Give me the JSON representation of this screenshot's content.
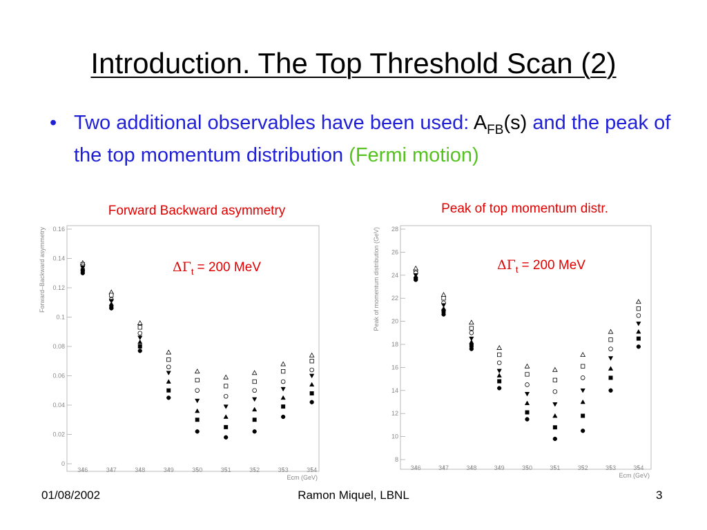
{
  "title": "Introduction. The Top Threshold Scan (2)",
  "bullet": {
    "part1": "Two additional observables have been used:",
    "part2": "A",
    "part2_sub": "FB",
    "part3": "(s)",
    "part4": "and the peak of the top momentum distribution",
    "part5": "(Fermi motion)"
  },
  "footer": {
    "date": "01/08/2002",
    "author": "Ramon Miquel, LBNL",
    "page": "3"
  },
  "chart_data": [
    {
      "type": "scatter",
      "title": "Forward Backward asymmetry",
      "xlabel": "Ecm (GeV)",
      "ylabel": "Forward–Backward asymmetry",
      "annotation": {
        "symbol": "ΔΓ",
        "subscript": "t",
        "text": "= 200 MeV"
      },
      "x": [
        346,
        347,
        348,
        349,
        350,
        351,
        352,
        353,
        354
      ],
      "xlim": [
        345.45,
        354.25
      ],
      "xticks": [
        346,
        347,
        348,
        349,
        350,
        351,
        352,
        353,
        354
      ],
      "ylim": [
        0,
        0.16
      ],
      "yticks": [
        0,
        0.02,
        0.04,
        0.06,
        0.08,
        0.1,
        0.12,
        0.14,
        0.16
      ],
      "color": "#000000",
      "series": [
        {
          "marker": "open-triangle",
          "values": [
            0.137,
            0.117,
            0.096,
            0.076,
            0.063,
            0.059,
            0.062,
            0.068,
            0.074
          ]
        },
        {
          "marker": "open-square",
          "values": [
            0.136,
            0.115,
            0.093,
            0.071,
            0.057,
            0.053,
            0.056,
            0.063,
            0.07
          ]
        },
        {
          "marker": "open-circle",
          "values": [
            0.135,
            0.112,
            0.089,
            0.066,
            0.05,
            0.046,
            0.05,
            0.056,
            0.064
          ]
        },
        {
          "marker": "filled-triangle-down",
          "values": [
            0.134,
            0.111,
            0.086,
            0.062,
            0.043,
            0.039,
            0.044,
            0.051,
            0.06
          ]
        },
        {
          "marker": "filled-triangle",
          "values": [
            0.133,
            0.109,
            0.083,
            0.056,
            0.036,
            0.032,
            0.037,
            0.045,
            0.054
          ]
        },
        {
          "marker": "filled-square",
          "values": [
            0.132,
            0.107,
            0.08,
            0.05,
            0.03,
            0.025,
            0.03,
            0.039,
            0.048
          ]
        },
        {
          "marker": "filled-circle",
          "values": [
            0.13,
            0.106,
            0.077,
            0.045,
            0.022,
            0.018,
            0.022,
            0.032,
            0.042
          ]
        }
      ]
    },
    {
      "type": "scatter",
      "title": "Peak of top momentum distr.",
      "xlabel": "Ecm (GeV)",
      "ylabel": "Peak of momentum distribution (GeV)",
      "annotation": {
        "symbol": "ΔΓ",
        "subscript": "t",
        "text": "= 200 MeV"
      },
      "x": [
        346,
        347,
        348,
        349,
        350,
        351,
        352,
        353,
        354
      ],
      "xlim": [
        345.45,
        354.45
      ],
      "xticks": [
        346,
        347,
        348,
        349,
        350,
        351,
        352,
        353,
        354
      ],
      "ylim": [
        8,
        28
      ],
      "yticks": [
        8,
        10,
        12,
        14,
        16,
        18,
        20,
        22,
        24,
        26,
        28
      ],
      "color": "#000000",
      "series": [
        {
          "marker": "open-triangle",
          "values": [
            24.6,
            22.3,
            19.9,
            17.7,
            16.1,
            15.8,
            17.1,
            19.1,
            21.7
          ]
        },
        {
          "marker": "open-square",
          "values": [
            24.3,
            22.0,
            19.4,
            17.1,
            15.4,
            14.9,
            16.1,
            18.4,
            21.1
          ]
        },
        {
          "marker": "open-circle",
          "values": [
            24.2,
            21.6,
            19.0,
            16.4,
            14.5,
            13.9,
            15.1,
            17.6,
            20.5
          ]
        },
        {
          "marker": "filled-triangle-down",
          "values": [
            24.0,
            21.4,
            18.5,
            15.7,
            13.7,
            12.8,
            14.0,
            16.8,
            19.8
          ]
        },
        {
          "marker": "filled-triangle",
          "values": [
            23.9,
            21.1,
            18.2,
            15.3,
            12.9,
            11.8,
            13.0,
            15.9,
            19.1
          ]
        },
        {
          "marker": "filled-square",
          "values": [
            23.7,
            20.9,
            17.9,
            14.8,
            12.1,
            10.8,
            11.8,
            15.1,
            18.5
          ]
        },
        {
          "marker": "filled-circle",
          "values": [
            23.6,
            20.6,
            17.6,
            14.2,
            11.5,
            9.8,
            10.5,
            14.0,
            17.8
          ]
        }
      ]
    }
  ]
}
